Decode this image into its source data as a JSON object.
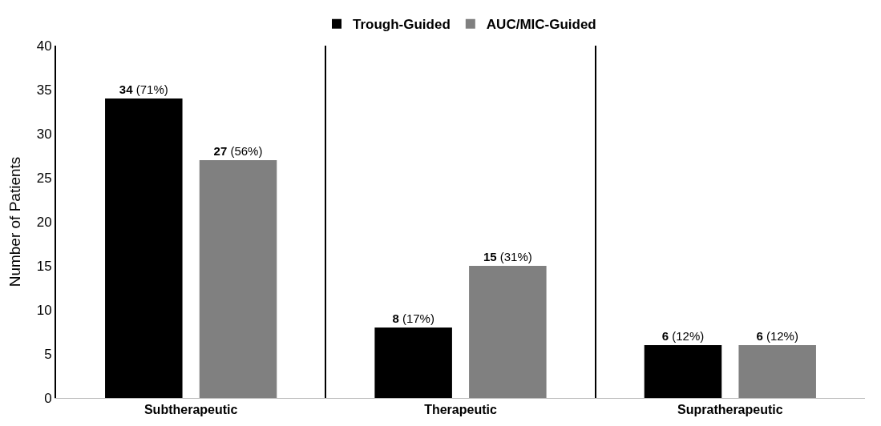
{
  "chart_data": {
    "type": "bar",
    "ylabel": "Number of Patients",
    "categories": [
      "Subtherapeutic",
      "Therapeutic",
      "Supratherapeutic"
    ],
    "series": [
      {
        "name": "Trough-Guided",
        "color": "#000000",
        "values": [
          34,
          8,
          6
        ],
        "value_labels": [
          "34 (71%)",
          "8 (17%)",
          "6 (12%)"
        ]
      },
      {
        "name": "AUC/MIC-Guided",
        "color": "#808080",
        "values": [
          27,
          15,
          6
        ],
        "value_labels": [
          "27 (56%)",
          "15 (31%)",
          "6 (12%)"
        ]
      }
    ],
    "ylim": [
      0,
      40
    ],
    "yticks": [
      0,
      5,
      10,
      15,
      20,
      25,
      30,
      35,
      40
    ],
    "grid": "x",
    "legend": "top"
  }
}
